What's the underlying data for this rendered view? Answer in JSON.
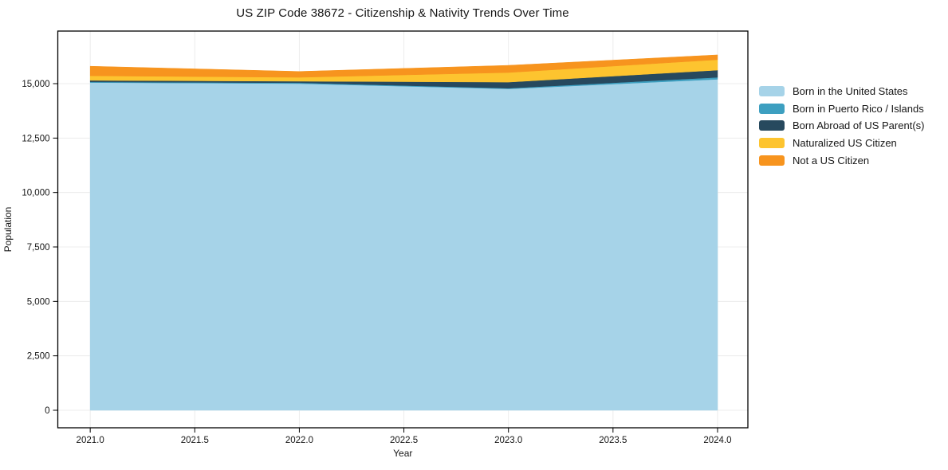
{
  "title": "US ZIP Code 38672 - Citizenship & Nativity Trends Over Time",
  "chart_data": {
    "type": "area",
    "stacked": true,
    "title": "US ZIP Code 38672 - Citizenship & Nativity Trends Over Time",
    "xlabel": "Year",
    "ylabel": "Population",
    "x": [
      2021,
      2022,
      2023,
      2024
    ],
    "series": [
      {
        "name": "Born in the United States",
        "color": "#a6d3e8",
        "values": [
          15050,
          15000,
          14760,
          15200
        ]
      },
      {
        "name": "Born in Puerto Rico / Islands",
        "color": "#3d9fc0",
        "values": [
          30,
          40,
          30,
          90
        ]
      },
      {
        "name": "Born Abroad of US Parent(s)",
        "color": "#27495e",
        "values": [
          70,
          70,
          280,
          330
        ]
      },
      {
        "name": "Naturalized US Citizen",
        "color": "#fdc42f",
        "values": [
          210,
          180,
          440,
          480
        ]
      },
      {
        "name": "Not a US Citizen",
        "color": "#f7941e",
        "values": [
          440,
          270,
          330,
          220
        ]
      }
    ],
    "totals": [
      15800,
      15560,
      15840,
      16320
    ],
    "x_ticks": [
      2021.0,
      2021.5,
      2022.0,
      2022.5,
      2023.0,
      2023.5,
      2024.0
    ],
    "y_ticks": [
      0,
      2500,
      5000,
      7500,
      10000,
      12500,
      15000
    ],
    "x_tick_labels": [
      "2021.0",
      "2021.5",
      "2022.0",
      "2022.5",
      "2023.0",
      "2023.5",
      "2024.0"
    ],
    "y_tick_labels": [
      "0",
      "2,500",
      "5,000",
      "7,500",
      "10,000",
      "12,500",
      "15,000"
    ],
    "xlim": [
      2020.845,
      2024.145
    ],
    "ylim": [
      -805,
      17415
    ],
    "grid": true,
    "grid_color": "#ececec",
    "frame_color": "#000000",
    "legend_position": "right"
  }
}
